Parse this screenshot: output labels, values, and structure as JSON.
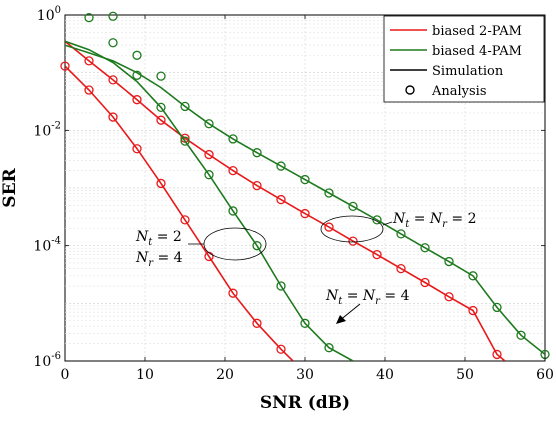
{
  "chart_data": {
    "type": "line",
    "xlabel": "SNR (dB)",
    "ylabel": "SER",
    "xlim": [
      0,
      60
    ],
    "ylim": [
      1e-06,
      1
    ],
    "yscale": "log",
    "grid": true,
    "legend_position": "top-right",
    "xticks": [
      0,
      10,
      20,
      30,
      40,
      50,
      60
    ],
    "yticks": [
      {
        "value": 1,
        "mantissa": "10",
        "exp": "0"
      },
      {
        "value": 0.01,
        "mantissa": "10",
        "exp": "-2"
      },
      {
        "value": 0.0001,
        "mantissa": "10",
        "exp": "-4"
      },
      {
        "value": 1e-06,
        "mantissa": "10",
        "exp": "-6"
      }
    ],
    "legend": [
      {
        "label": "biased 2-PAM",
        "kind": "line",
        "color": "#e8191a"
      },
      {
        "label": "biased 4-PAM",
        "kind": "line",
        "color": "#1e7a1e"
      },
      {
        "label": "Simulation",
        "kind": "line",
        "color": "#000000"
      },
      {
        "label": "Analysis",
        "kind": "marker",
        "color": "#000000"
      }
    ],
    "series": [
      {
        "modulation": "2-PAM",
        "config": "Nt=2, Nr=4",
        "color": "#e8191a",
        "sim_x": [
          0,
          3,
          6,
          9,
          12,
          15,
          18,
          21,
          24,
          27,
          28.5
        ],
        "sim_y": [
          0.13,
          0.05,
          0.017,
          0.0048,
          0.0012,
          0.00028,
          6.5e-05,
          1.5e-05,
          4.5e-06,
          1.6e-06,
          1e-06
        ],
        "analysis_x": [
          0,
          3,
          6,
          9,
          12,
          15,
          18,
          21,
          24,
          27
        ],
        "analysis_y": [
          0.13,
          0.05,
          0.017,
          0.0048,
          0.0012,
          0.00028,
          6.5e-05,
          1.5e-05,
          4.5e-06,
          1.6e-06
        ]
      },
      {
        "modulation": "2-PAM",
        "config": "Nt=Nr=2",
        "color": "#e8191a",
        "sim_x": [
          0,
          3,
          6,
          9,
          12,
          15,
          18,
          21,
          24,
          27,
          30,
          33,
          36,
          39,
          42,
          45,
          48,
          51,
          54,
          55
        ],
        "sim_y": [
          0.35,
          0.16,
          0.075,
          0.034,
          0.015,
          0.0073,
          0.0038,
          0.002,
          0.0011,
          0.00063,
          0.00036,
          0.00021,
          0.00012,
          7e-05,
          4e-05,
          2.3e-05,
          1.3e-05,
          7.5e-06,
          1.3e-06,
          1e-06
        ],
        "analysis_x": [
          3,
          6,
          9,
          12,
          15,
          18,
          21,
          24,
          27,
          30,
          33,
          36,
          39,
          42,
          45,
          48,
          51,
          54
        ],
        "analysis_y": [
          0.16,
          0.075,
          0.034,
          0.015,
          0.0073,
          0.0038,
          0.002,
          0.0011,
          0.00063,
          0.00036,
          0.00021,
          0.00012,
          7e-05,
          4e-05,
          2.3e-05,
          1.3e-05,
          7.5e-06,
          1.3e-06
        ]
      },
      {
        "modulation": "4-PAM",
        "config": "Nt=2, Nr=4",
        "color": "#1e7a1e",
        "sim_x": [
          0,
          3,
          6,
          9,
          12,
          15,
          18,
          21,
          24,
          27,
          30,
          33,
          36
        ],
        "sim_y": [
          0.35,
          0.25,
          0.15,
          0.07,
          0.025,
          0.0065,
          0.0017,
          0.0004,
          0.0001,
          2e-05,
          4.5e-06,
          1.7e-06,
          1e-06
        ],
        "analysis_x": [
          3,
          6,
          9,
          12,
          15,
          18,
          21,
          24,
          27,
          30,
          33
        ],
        "analysis_y": [
          0.9,
          0.33,
          0.09,
          0.025,
          0.0065,
          0.0017,
          0.0004,
          0.0001,
          2e-05,
          4.5e-06,
          1.7e-06
        ]
      },
      {
        "modulation": "4-PAM",
        "config": "Nt=Nr=2",
        "color": "#1e7a1e",
        "sim_x": [
          0,
          3,
          6,
          9,
          12,
          15,
          18,
          21,
          24,
          27,
          30,
          33,
          36,
          39,
          42,
          45,
          48,
          51,
          54,
          57,
          60
        ],
        "sim_y": [
          0.3,
          0.22,
          0.16,
          0.1,
          0.055,
          0.026,
          0.013,
          0.0071,
          0.0041,
          0.0024,
          0.0014,
          0.00082,
          0.00048,
          0.00028,
          0.00016,
          9.2e-05,
          5.3e-05,
          3e-05,
          8.5e-06,
          2.8e-06,
          1.3e-06
        ],
        "analysis_x": [
          6,
          9,
          12,
          15,
          18,
          21,
          24,
          27,
          30,
          33,
          36,
          39,
          42,
          45,
          48,
          51,
          54,
          57,
          60
        ],
        "analysis_y": [
          0.95,
          0.2,
          0.087,
          0.026,
          0.013,
          0.0071,
          0.0041,
          0.0024,
          0.0014,
          0.00082,
          0.00048,
          0.00028,
          0.00016,
          9.2e-05,
          5.3e-05,
          3e-05,
          8.5e-06,
          2.8e-06,
          1.3e-06
        ]
      }
    ],
    "annotations": [
      {
        "id": "a1",
        "lines": [
          {
            "sym": "N",
            "sub": "t",
            "rest": " = 2"
          },
          {
            "sym": "N",
            "sub": "r",
            "rest": " = 4"
          }
        ]
      },
      {
        "id": "a2",
        "text": "N_t = N_r = 2"
      },
      {
        "id": "a3",
        "text": "N_t = N_r = 4"
      }
    ]
  }
}
